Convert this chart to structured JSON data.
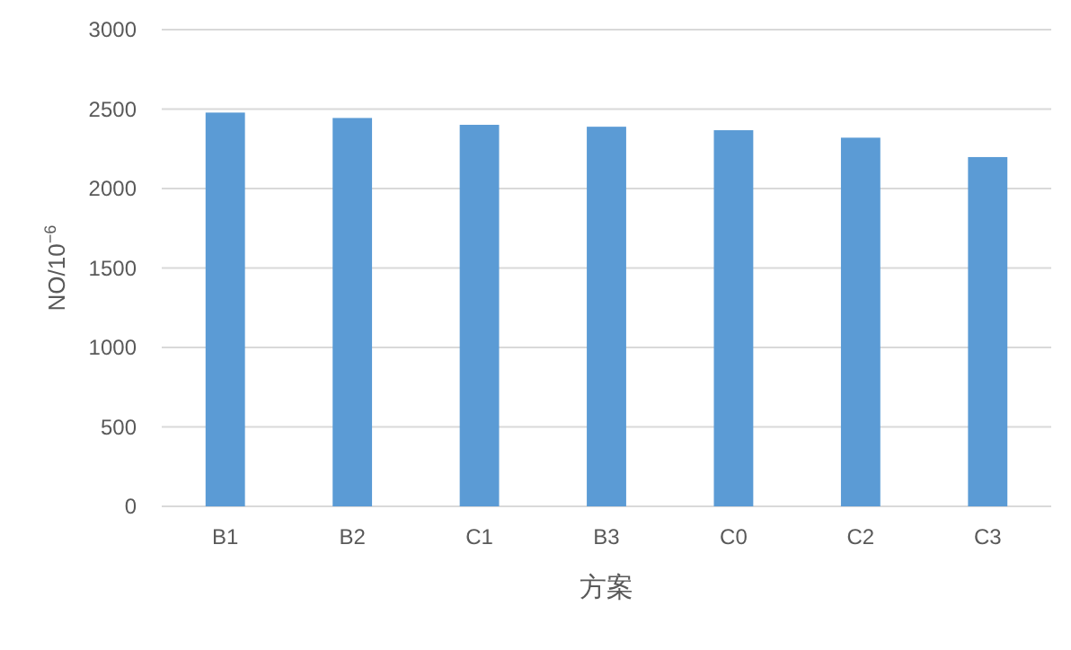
{
  "chart_data": {
    "type": "bar",
    "categories": [
      "B1",
      "B2",
      "C1",
      "B3",
      "C0",
      "C2",
      "C3"
    ],
    "values": [
      2478,
      2444,
      2401,
      2389,
      2367,
      2320,
      2198
    ],
    "color": "#5b9bd5",
    "xlabel": "方案",
    "ylabel": "NO/10$^{−6}$",
    "ylim": [
      0,
      3000
    ],
    "yticks": [
      0,
      500,
      1000,
      1500,
      2000,
      2500,
      3000
    ],
    "grid": "y"
  }
}
